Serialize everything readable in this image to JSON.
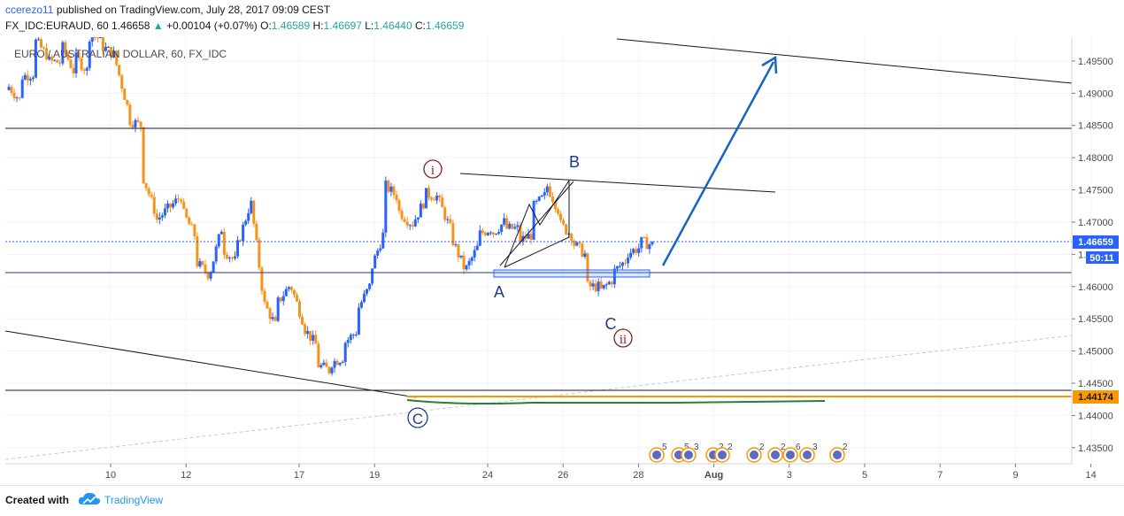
{
  "header": {
    "username": "ccerezo11",
    "published_text": "published on TradingView.com, July 28, 2017 09:09 CEST",
    "symbol": "FX_IDC:EURAUD, 60",
    "last": "1.46658",
    "arrow": "▲",
    "change": "+0.00104 (+0.07%)",
    "o_label": "O:",
    "o_value": "1.46589",
    "h_label": "H:",
    "h_value": "1.46697",
    "l_label": "L:",
    "l_value": "1.46440",
    "c_label": "C:",
    "c_value": "1.46659"
  },
  "chart_title": "EURO / AUSTRALIAN DOLLAR, 60, FX_IDC",
  "footer": {
    "created_with": "Created with",
    "brand": "TradingView"
  },
  "colors": {
    "up": "#2962ff",
    "down": "#f7931a",
    "orange_line": "#ff9800",
    "green_line": "#2e7d32",
    "blue_arrow": "#1565c0",
    "wave_red": "#8b1a1a"
  },
  "chart_data": {
    "type": "candlestick",
    "ylim": [
      1.4325,
      1.4987
    ],
    "y_ticks": [
      "1.49500",
      "1.49000",
      "1.48500",
      "1.48000",
      "1.47500",
      "1.47000",
      "1.46500",
      "1.46000",
      "1.45500",
      "1.45000",
      "1.44500",
      "1.44000",
      "1.43500"
    ],
    "x_ticks": [
      "10",
      "12",
      "17",
      "19",
      "24",
      "26",
      "28",
      "Aug",
      "3",
      "5",
      "7",
      "9",
      "14"
    ],
    "current_price_label": "1.46659",
    "countdown_label": "50:11",
    "support_price_label": "1.44174",
    "price_path": [
      [
        1.4905,
        1.4915
      ],
      [
        1.489,
        1.4925
      ],
      [
        1.493,
        1.4985
      ],
      [
        1.496,
        1.495
      ],
      [
        1.4948,
        1.498
      ],
      [
        1.4935,
        1.496
      ],
      [
        1.4935,
        1.499
      ],
      [
        1.4985,
        1.4975
      ],
      [
        1.496,
        1.496
      ],
      [
        1.488,
        1.486
      ],
      [
        1.485,
        1.478
      ],
      [
        1.472,
        1.47
      ],
      [
        1.472,
        1.472
      ],
      [
        1.474,
        1.472
      ],
      [
        1.468,
        1.464
      ],
      [
        1.462,
        1.461
      ],
      [
        1.469,
        1.466
      ],
      [
        1.464,
        1.465
      ],
      [
        1.472,
        1.476
      ],
      [
        1.46,
        1.458
      ],
      [
        1.454,
        1.457
      ],
      [
        1.46,
        1.461
      ],
      [
        1.455,
        1.454
      ],
      [
        1.451,
        1.448
      ],
      [
        1.447,
        1.448
      ],
      [
        1.449,
        1.451
      ],
      [
        1.453,
        1.456
      ],
      [
        1.46,
        1.462
      ],
      [
        1.468,
        1.476
      ],
      [
        1.474,
        1.472
      ],
      [
        1.47,
        1.469
      ],
      [
        1.473,
        1.4745
      ],
      [
        1.474,
        1.474
      ],
      [
        1.469,
        1.468
      ],
      [
        1.463,
        1.462
      ],
      [
        1.466,
        1.468
      ],
      [
        1.469,
        1.468
      ],
      [
        1.47,
        1.469
      ],
      [
        1.469,
        1.467
      ],
      [
        1.468,
        1.472
      ],
      [
        1.474,
        1.4765
      ],
      [
        1.472,
        1.47
      ],
      [
        1.468,
        1.467
      ],
      [
        1.465,
        1.46
      ],
      [
        1.46,
        1.459
      ],
      [
        1.461,
        1.462
      ],
      [
        1.464,
        1.465
      ],
      [
        1.466,
        1.467
      ],
      [
        1.4665,
        1.4666
      ]
    ],
    "wave_labels": [
      "i",
      "B",
      "A",
      "C",
      "ii",
      "C"
    ],
    "calendar_event_numbers": [
      "5",
      "5",
      "3",
      "2",
      "2",
      "2",
      "2",
      "6",
      "3",
      "2"
    ]
  }
}
